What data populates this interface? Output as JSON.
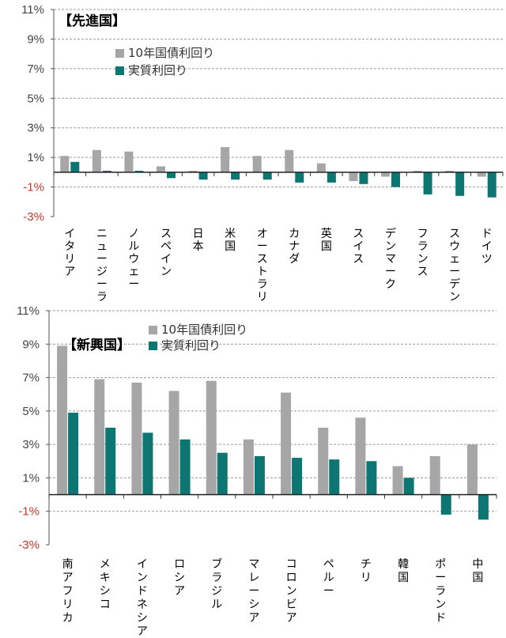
{
  "chart_data": [
    {
      "type": "bar",
      "title": "【先進国】",
      "categories": [
        "イタリア",
        "ニュージーランド",
        "ノルウェー",
        "スペイン",
        "日本",
        "米国",
        "オーストラリア",
        "カナダ",
        "英国",
        "スイス",
        "デンマーク",
        "フランス",
        "スウェーデン",
        "ドイツ"
      ],
      "series": [
        {
          "name": "10年国債利回り",
          "color": "#a6a6a6",
          "values": [
            1.1,
            1.5,
            1.4,
            0.4,
            0.1,
            1.7,
            1.1,
            1.5,
            0.6,
            -0.6,
            -0.3,
            0.1,
            0.1,
            -0.3
          ]
        },
        {
          "name": "実質利回り",
          "color": "#0e7672",
          "values": [
            0.7,
            0.1,
            0.1,
            -0.4,
            -0.5,
            -0.5,
            -0.5,
            -0.7,
            -0.7,
            -0.8,
            -1.0,
            -1.5,
            -1.6,
            -1.7
          ]
        }
      ],
      "yticks": [
        "11%",
        "9%",
        "7%",
        "5%",
        "3%",
        "1%",
        "-1%",
        "-3%"
      ],
      "ylim": [
        -3,
        11
      ]
    },
    {
      "type": "bar",
      "title": "【新興国】",
      "categories": [
        "南アフリカ",
        "メキシコ",
        "インドネシア",
        "ロシア",
        "ブラジル",
        "マレーシア",
        "コロンビア",
        "ペルー",
        "チリ",
        "韓国",
        "ポーランド",
        "中国"
      ],
      "series": [
        {
          "name": "10年国債利回り",
          "color": "#a6a6a6",
          "values": [
            8.9,
            6.9,
            6.7,
            6.2,
            6.8,
            3.3,
            6.1,
            4.0,
            4.6,
            1.7,
            2.3,
            3.0
          ]
        },
        {
          "name": "実質利回り",
          "color": "#0e7672",
          "values": [
            4.9,
            4.0,
            3.7,
            3.3,
            2.5,
            2.3,
            2.2,
            2.1,
            2.0,
            1.0,
            -1.2,
            -1.5
          ]
        }
      ],
      "yticks": [
        "11%",
        "9%",
        "7%",
        "5%",
        "3%",
        "1%",
        "-1%",
        "-3%"
      ],
      "ylim": [
        -3,
        11
      ]
    }
  ]
}
